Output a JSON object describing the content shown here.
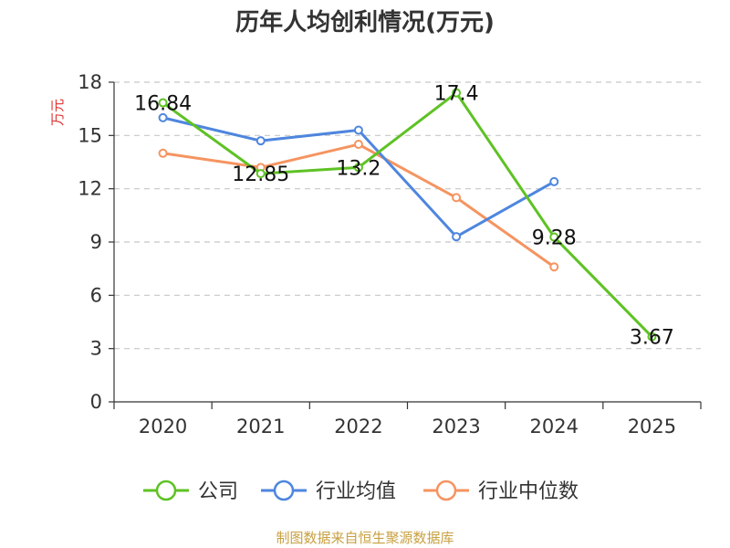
{
  "chart_data": {
    "type": "line",
    "title": "历年人均创利情况(万元)",
    "ylabel": "万元",
    "xlabel": "",
    "categories": [
      "2020",
      "2021",
      "2022",
      "2023",
      "2024",
      "2025"
    ],
    "ylim": [
      0,
      18
    ],
    "yticks": [
      0,
      3,
      6,
      9,
      12,
      15,
      18
    ],
    "grid": true,
    "legend_position": "bottom",
    "series": [
      {
        "name": "公司",
        "color": "#5ec224",
        "values": [
          16.84,
          12.85,
          13.2,
          17.4,
          9.28,
          3.67
        ],
        "labels": [
          "16.84",
          "12.85",
          "13.2",
          "17.4",
          "9.28",
          "3.67"
        ]
      },
      {
        "name": "行业均值",
        "color": "#4e86de",
        "values": [
          16.0,
          14.7,
          15.3,
          9.3,
          12.4,
          null
        ]
      },
      {
        "name": "行业中位数",
        "color": "#f59460",
        "values": [
          14.0,
          13.2,
          14.5,
          11.5,
          7.6,
          null
        ]
      }
    ]
  },
  "source_text": "制图数据来自恒生聚源数据库"
}
